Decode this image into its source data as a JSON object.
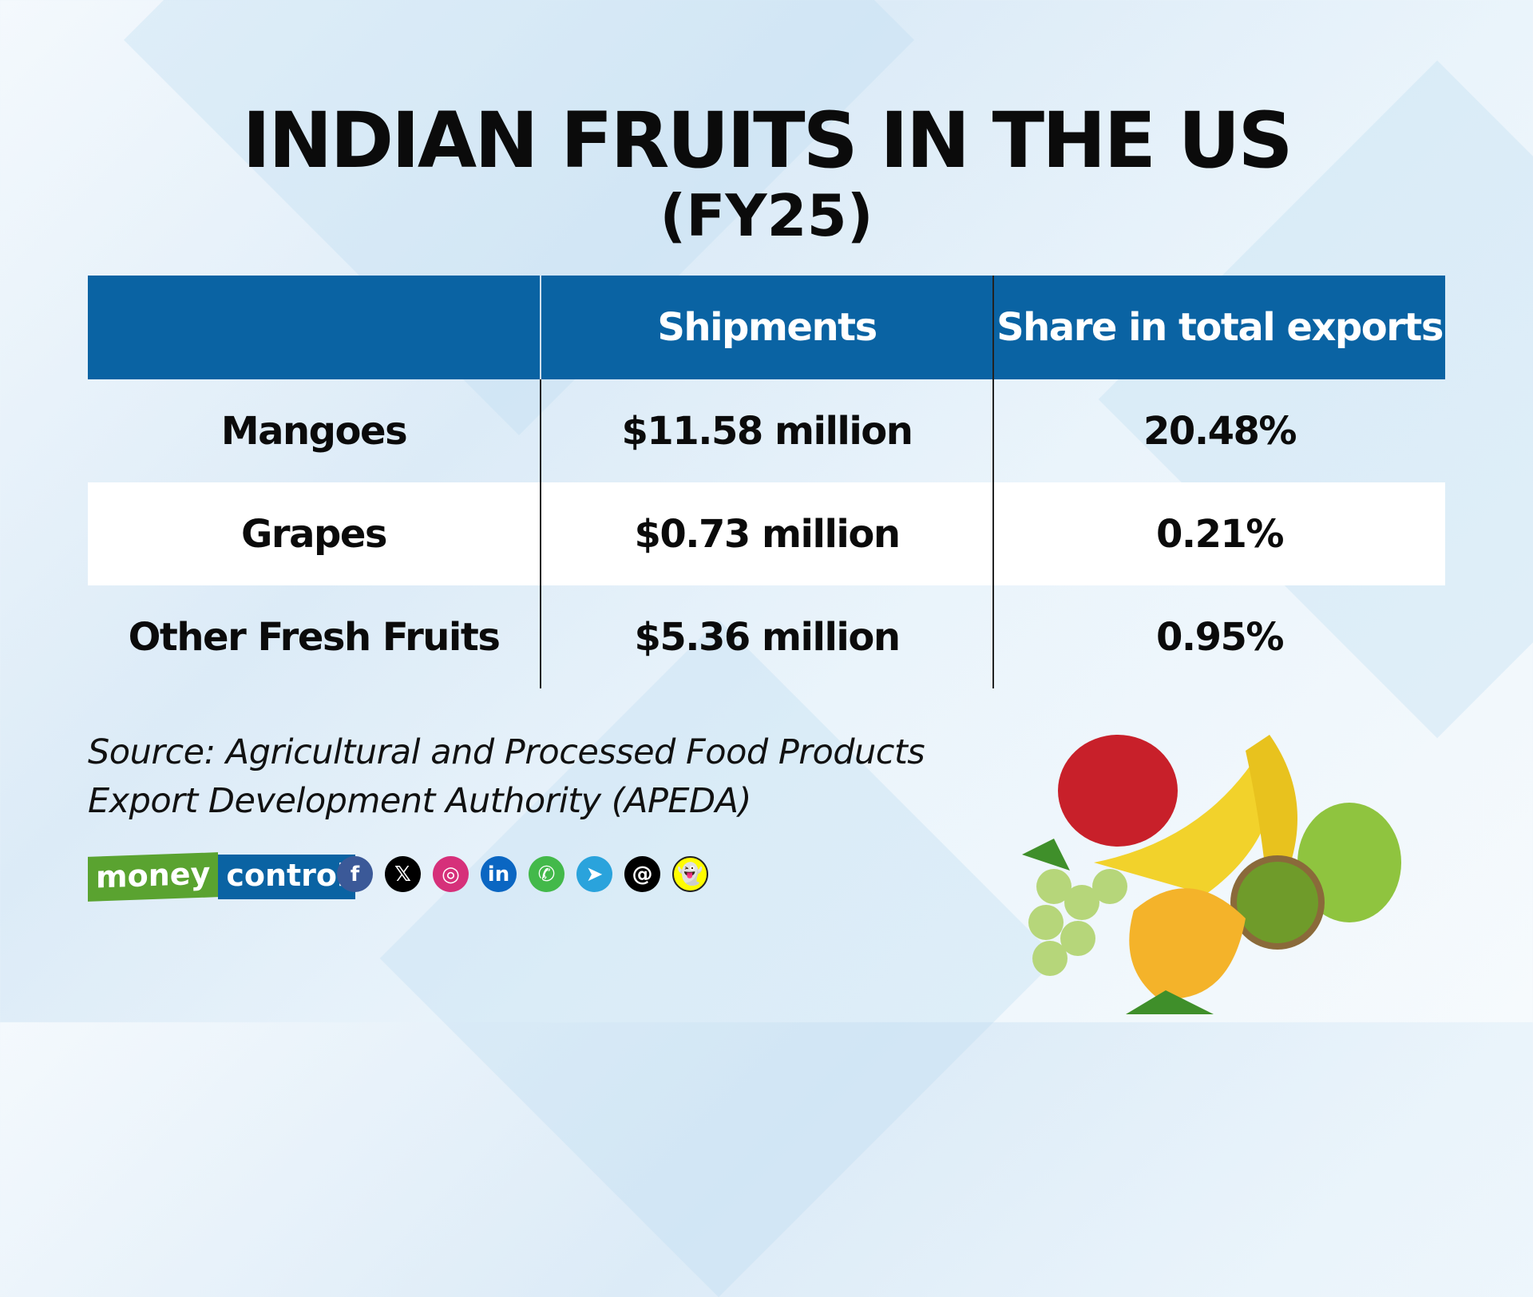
{
  "title": "INDIAN FRUITS IN THE US",
  "subtitle": "(FY25)",
  "table": {
    "headers": [
      "",
      "Shipments",
      "Share in total exports"
    ],
    "rows": [
      {
        "fruit": "Mangoes",
        "shipments": "$11.58 million",
        "share": "20.48%"
      },
      {
        "fruit": "Grapes",
        "shipments": "$0.73 million",
        "share": "0.21%"
      },
      {
        "fruit": "Other Fresh Fruits",
        "shipments": "$5.36 million",
        "share": "0.95%"
      }
    ]
  },
  "source": {
    "line1": "Source: Agricultural and Processed Food Products",
    "line2": "Export Development Authority  (APEDA)"
  },
  "logo": {
    "part1": "money",
    "part2": "control"
  },
  "social_icons": [
    {
      "name": "facebook-icon",
      "glyph": "f",
      "color": "#3b5998"
    },
    {
      "name": "x-icon",
      "glyph": "𝕏",
      "color": "#000000"
    },
    {
      "name": "instagram-icon",
      "glyph": "◎",
      "color": "#d6307a"
    },
    {
      "name": "linkedin-icon",
      "glyph": "in",
      "color": "#0a66c2"
    },
    {
      "name": "whatsapp-icon",
      "glyph": "✆",
      "color": "#43b94a"
    },
    {
      "name": "telegram-icon",
      "glyph": "➤",
      "color": "#2aa3dc"
    },
    {
      "name": "threads-icon",
      "glyph": "@",
      "color": "#000000"
    },
    {
      "name": "snapchat-icon",
      "glyph": "👻",
      "color": "#fffc00"
    }
  ],
  "colors": {
    "header": "#0a63a3",
    "logo_green": "#5aa330",
    "logo_blue": "#0a63a3"
  }
}
